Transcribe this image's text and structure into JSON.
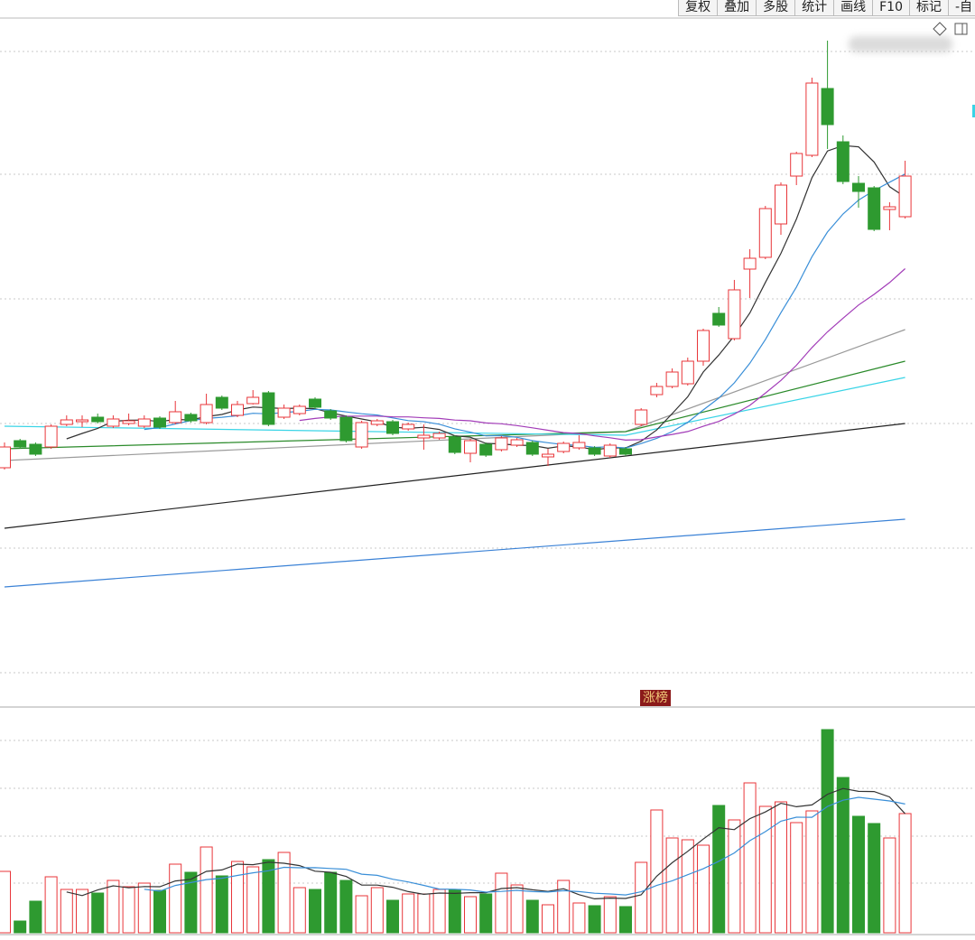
{
  "toolbar": [
    "复权",
    "叠加",
    "多股",
    "统计",
    "画线",
    "F10",
    "标记",
    "-自"
  ],
  "chart_data": {
    "type": "candlestick",
    "badge": "涨榜",
    "up_color": "#e8363a",
    "down_color": "#2e9a30",
    "ylim": [
      0,
      76
    ],
    "vlim": [
      0,
      248
    ],
    "open": [
      26.2,
      29.2,
      28.8,
      28.5,
      31.0,
      31.3,
      31.8,
      30.8,
      31.1,
      30.8,
      31.7,
      31.2,
      32.1,
      31.2,
      34.0,
      32.0,
      33.3,
      34.5,
      31.8,
      32.2,
      33.8,
      32.5,
      31.8,
      28.5,
      31.0,
      31.3,
      30.5,
      29.5,
      29.5,
      29.6,
      27.8,
      28.8,
      28.2,
      28.7,
      29.0,
      27.4,
      28.0,
      28.4,
      28.4,
      27.5,
      28.3,
      31.0,
      34.3,
      35.2,
      35.5,
      38.0,
      43.3,
      40.5,
      48.2,
      49.5,
      53.2,
      58.5,
      60.8,
      68.2,
      62.3,
      57.7,
      57.2,
      54.8,
      54.0
    ],
    "high": [
      29.0,
      29.4,
      29.0,
      31.0,
      32.0,
      32.0,
      32.2,
      32.0,
      32.2,
      32.0,
      31.9,
      33.6,
      32.3,
      34.4,
      34.2,
      33.6,
      34.8,
      34.7,
      33.2,
      33.2,
      34.0,
      32.7,
      32.0,
      31.4,
      31.6,
      31.5,
      31.2,
      31.0,
      30.2,
      29.8,
      29.4,
      29.0,
      29.7,
      29.5,
      29.2,
      28.3,
      29.1,
      29.8,
      28.6,
      28.9,
      28.5,
      32.8,
      35.6,
      37.2,
      38.4,
      41.6,
      44.0,
      47.0,
      50.4,
      55.2,
      57.8,
      61.2,
      69.4,
      73.5,
      63.0,
      58.5,
      57.4,
      55.6,
      60.2
    ],
    "low": [
      26.0,
      28.3,
      27.5,
      28.3,
      30.8,
      30.7,
      31.1,
      30.6,
      30.9,
      30.6,
      30.5,
      31.0,
      31.2,
      31.0,
      32.6,
      31.8,
      33.2,
      30.8,
      31.6,
      32.0,
      32.7,
      31.5,
      29.0,
      28.3,
      30.8,
      29.8,
      30.3,
      28.2,
      29.3,
      27.7,
      26.8,
      27.4,
      28.0,
      28.5,
      27.5,
      26.4,
      27.8,
      28.2,
      27.5,
      27.3,
      27.5,
      30.8,
      34.0,
      35.0,
      35.3,
      37.5,
      41.8,
      40.3,
      45.0,
      49.3,
      52.0,
      57.5,
      60.6,
      61.5,
      57.6,
      55.0,
      52.4,
      52.5,
      53.8
    ],
    "close": [
      28.5,
      28.5,
      27.7,
      30.8,
      31.5,
      31.5,
      31.3,
      31.6,
      31.4,
      31.6,
      30.7,
      32.4,
      31.4,
      33.2,
      32.8,
      33.2,
      34.0,
      31.0,
      32.8,
      33.0,
      32.9,
      31.7,
      29.2,
      31.2,
      31.4,
      30.0,
      31.0,
      29.8,
      30.0,
      27.9,
      29.2,
      27.6,
      29.5,
      29.3,
      27.7,
      27.7,
      28.9,
      29.0,
      27.7,
      28.7,
      27.7,
      32.6,
      35.2,
      36.8,
      38.0,
      41.4,
      42.0,
      45.9,
      49.4,
      54.9,
      57.5,
      61.0,
      68.8,
      64.2,
      57.9,
      56.8,
      52.6,
      55.1,
      58.5
    ],
    "volume": [
      68,
      13,
      35,
      62,
      48,
      48,
      44,
      58,
      51,
      55,
      47,
      76,
      67,
      95,
      63,
      79,
      73,
      81,
      89,
      50,
      48,
      67,
      58,
      41,
      50,
      36,
      43,
      43,
      48,
      48,
      40,
      43,
      66,
      53,
      36,
      31,
      58,
      33,
      30,
      40,
      29,
      78,
      136,
      105,
      103,
      97,
      141,
      125,
      166,
      140,
      145,
      122,
      135,
      225,
      172,
      129,
      121,
      105,
      132
    ],
    "ma_periods": [
      {
        "period": 5,
        "color": "#333333"
      },
      {
        "period": 10,
        "color": "#3a8fd8"
      },
      {
        "period": 20,
        "color": "#a23cb8"
      }
    ],
    "volume_ma_periods": [
      {
        "period": 5,
        "color": "#333333"
      },
      {
        "period": 10,
        "color": "#3a8fd8"
      }
    ],
    "lines": [
      {
        "color": "#9a9a9a",
        "x": [
          0,
          40,
          58
        ],
        "values": [
          27.0,
          30.2,
          41.5
        ]
      },
      {
        "color": "#2a8a2a",
        "x": [
          0,
          40,
          58
        ],
        "values": [
          28.3,
          30.2,
          38.0
        ]
      },
      {
        "color": "#39d4e6",
        "x": [
          0,
          40,
          58
        ],
        "values": [
          30.8,
          29.8,
          36.2
        ]
      },
      {
        "color": "#222222",
        "x": [
          0,
          58
        ],
        "values": [
          19.5,
          31.1
        ]
      },
      {
        "color": "#3b82d6",
        "x": [
          0,
          58
        ],
        "values": [
          13.0,
          20.5
        ]
      }
    ]
  }
}
